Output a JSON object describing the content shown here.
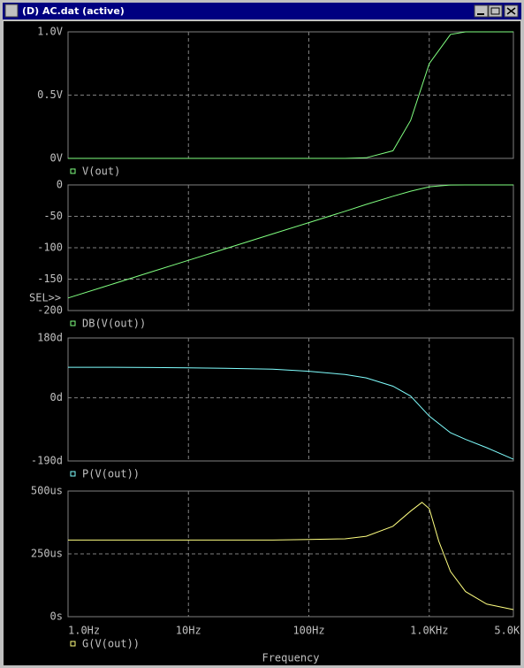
{
  "window_title": "(D) AC.dat (active)",
  "chart_data": [
    {
      "type": "line",
      "xscale": "log",
      "grid": true,
      "xlim": [
        1,
        5000
      ],
      "xticks": [
        1,
        10,
        100,
        1000,
        5000
      ],
      "ylim": [
        0,
        1
      ],
      "yticks": [
        {
          "value": 0,
          "label": "0V"
        },
        {
          "value": 0.5,
          "label": "0.5V"
        },
        {
          "value": 1,
          "label": "1.0V"
        }
      ],
      "x": [
        1,
        2,
        5,
        10,
        20,
        50,
        100,
        200,
        300,
        500,
        700,
        1000,
        1500,
        2000,
        3000,
        5000
      ],
      "series": [
        {
          "name": "V(out)",
          "color": "#80ff80",
          "values": [
            0,
            0,
            0,
            0,
            0,
            0,
            0,
            0,
            0.005,
            0.06,
            0.3,
            0.75,
            0.98,
            1,
            1,
            1
          ]
        }
      ]
    },
    {
      "type": "line",
      "xscale": "log",
      "grid": true,
      "xlim": [
        1,
        5000
      ],
      "xticks": [
        1,
        10,
        100,
        1000,
        5000
      ],
      "ylim": [
        -200,
        0
      ],
      "yticks": [
        -200,
        -150,
        -100,
        -50,
        0
      ],
      "annotation": "SEL>>",
      "x": [
        1,
        2,
        5,
        10,
        20,
        50,
        100,
        200,
        300,
        500,
        700,
        1000,
        1500,
        2000,
        3000,
        5000
      ],
      "series": [
        {
          "name": "DB(V(out))",
          "color": "#80ff80",
          "values": [
            -180,
            -162,
            -138,
            -120,
            -102,
            -78,
            -60,
            -42,
            -31,
            -18,
            -10,
            -3,
            -0.2,
            0,
            0,
            0
          ]
        }
      ]
    },
    {
      "type": "line",
      "xscale": "log",
      "grid": true,
      "xlim": [
        1,
        5000
      ],
      "xticks": [
        1,
        10,
        100,
        1000,
        5000
      ],
      "ylim": [
        -190,
        180
      ],
      "yticks": [
        {
          "value": -190,
          "label": "-190d"
        },
        {
          "value": 0,
          "label": "0d"
        },
        {
          "value": 180,
          "label": "180d"
        }
      ],
      "x": [
        1,
        2,
        5,
        10,
        20,
        50,
        100,
        200,
        300,
        500,
        700,
        1000,
        1500,
        2000,
        3000,
        5000
      ],
      "series": [
        {
          "name": "P(V(out))",
          "color": "#80ffff",
          "values": [
            92,
            92,
            91,
            90,
            89,
            86,
            80,
            70,
            60,
            35,
            5,
            -55,
            -105,
            -125,
            -150,
            -185
          ]
        }
      ]
    },
    {
      "type": "line",
      "xscale": "log",
      "grid": true,
      "xlim": [
        1,
        5000
      ],
      "xticks": [
        {
          "value": 1,
          "label": "1.0Hz"
        },
        {
          "value": 10,
          "label": "10Hz"
        },
        {
          "value": 100,
          "label": "100Hz"
        },
        {
          "value": 1000,
          "label": "1.0KHz"
        },
        {
          "value": 5000,
          "label": "5.0KHz"
        }
      ],
      "xlabel": "Frequency",
      "ylim": [
        0,
        0.0005
      ],
      "yticks": [
        {
          "value": 0,
          "label": "0s"
        },
        {
          "value": 0.00025,
          "label": "250us"
        },
        {
          "value": 0.0005,
          "label": "500us"
        }
      ],
      "x": [
        1,
        2,
        5,
        10,
        20,
        50,
        100,
        200,
        300,
        500,
        700,
        870,
        1000,
        1200,
        1500,
        2000,
        3000,
        5000
      ],
      "series": [
        {
          "name": "G(V(out))",
          "color": "#ffff80",
          "values": [
            0.000305,
            0.000305,
            0.000305,
            0.000305,
            0.000305,
            0.000305,
            0.000307,
            0.00031,
            0.00032,
            0.00036,
            0.00042,
            0.000455,
            0.00043,
            0.0003,
            0.00018,
            0.0001,
            5e-05,
            2.8e-05
          ]
        }
      ]
    }
  ]
}
